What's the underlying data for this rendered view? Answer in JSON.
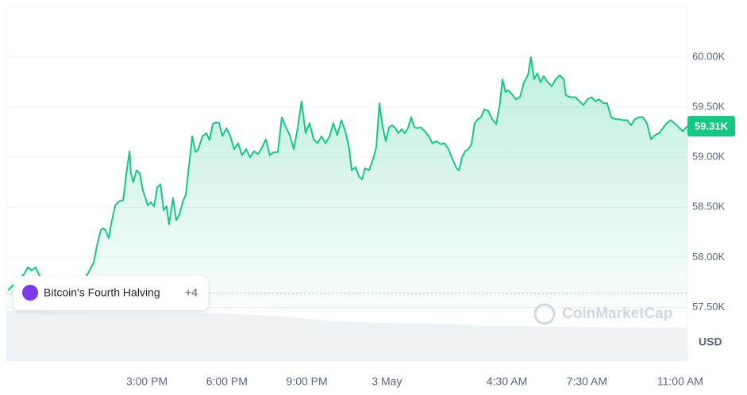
{
  "chart_data": {
    "type": "line",
    "color": "#16c784",
    "xlim": [
      9.73,
      35.27
    ],
    "xticks": [
      {
        "value": 15,
        "label": "3:00 PM"
      },
      {
        "value": 18,
        "label": "6:00 PM"
      },
      {
        "value": 21,
        "label": "9:00 PM"
      },
      {
        "value": 24,
        "label": "3 May"
      },
      {
        "value": 28.5,
        "label": "4:30 AM"
      },
      {
        "value": 31.5,
        "label": "7:30 AM"
      },
      {
        "value": 35,
        "label": "11:00 AM"
      }
    ],
    "ylim": [
      57440,
      60500
    ],
    "yticks": [
      {
        "value": 57500,
        "label": "57.50K"
      },
      {
        "value": 58000,
        "label": "58.00K"
      },
      {
        "value": 58500,
        "label": "58.50K"
      },
      {
        "value": 59000,
        "label": "59.00K"
      },
      {
        "value": 59500,
        "label": "59.50K"
      },
      {
        "value": 60000,
        "label": "60.00K"
      }
    ],
    "grid": true,
    "y_axis_label": "USD",
    "reference_value": 57640,
    "current": {
      "value": 59310,
      "label": "59.31K"
    },
    "annotation": {
      "label": "Bitcoin's Fourth Halving",
      "count": "+4"
    },
    "watermark": "CoinMarketCap",
    "x": [
      9.79,
      10.39,
      10.54,
      10.68,
      10.83,
      10.98,
      11.28,
      11.87,
      12.47,
      12.77,
      13.01,
      13.12,
      13.27,
      13.36,
      13.45,
      13.57,
      13.66,
      13.81,
      13.96,
      14.11,
      14.26,
      14.35,
      14.4,
      14.49,
      14.61,
      14.73,
      14.85,
      15.03,
      15.15,
      15.27,
      15.39,
      15.51,
      15.63,
      15.74,
      15.83,
      15.98,
      16.1,
      16.22,
      16.34,
      16.46,
      16.58,
      16.7,
      16.82,
      16.93,
      17.08,
      17.23,
      17.35,
      17.47,
      17.59,
      17.71,
      17.83,
      17.98,
      18.13,
      18.27,
      18.42,
      18.57,
      18.72,
      18.87,
      19.02,
      19.17,
      19.32,
      19.46,
      19.61,
      19.76,
      19.91,
      20.06,
      20.21,
      20.36,
      20.51,
      20.65,
      20.8,
      20.95,
      21.1,
      21.25,
      21.4,
      21.55,
      21.7,
      21.85,
      21.99,
      22.14,
      22.29,
      22.44,
      22.59,
      22.68,
      22.83,
      22.95,
      23.07,
      23.18,
      23.33,
      23.48,
      23.6,
      23.72,
      23.84,
      23.96,
      24.08,
      24.2,
      24.32,
      24.43,
      24.55,
      24.67,
      24.79,
      24.91,
      25.03,
      25.15,
      25.27,
      25.42,
      25.57,
      25.71,
      25.86,
      26.01,
      26.16,
      26.31,
      26.46,
      26.61,
      26.7,
      26.82,
      26.93,
      27.05,
      27.17,
      27.29,
      27.41,
      27.53,
      27.65,
      27.8,
      27.95,
      28.1,
      28.24,
      28.33,
      28.45,
      28.54,
      28.69,
      28.84,
      28.99,
      29.14,
      29.29,
      29.4,
      29.52,
      29.64,
      29.76,
      29.88,
      30.03,
      30.18,
      30.33,
      30.48,
      30.63,
      30.71,
      30.86,
      31.07,
      31.22,
      31.37,
      31.52,
      31.67,
      31.82,
      31.96,
      32.11,
      32.26,
      32.41,
      32.56,
      32.71,
      32.86,
      33.01,
      33.15,
      33.3,
      33.45,
      33.6,
      33.75,
      33.9,
      34.05,
      34.2,
      34.35,
      34.49,
      34.64,
      34.79,
      34.94,
      35.09,
      35.27
    ],
    "values": [
      57670,
      57830,
      57900,
      57870,
      57900,
      57810,
      57790,
      57750,
      57710,
      57830,
      57950,
      58110,
      58270,
      58290,
      58270,
      58190,
      58330,
      58520,
      58560,
      58570,
      58900,
      59060,
      58840,
      58750,
      58870,
      58840,
      58670,
      58520,
      58550,
      58510,
      58700,
      58730,
      58470,
      58510,
      58330,
      58590,
      58370,
      58430,
      58550,
      58630,
      58920,
      59210,
      59050,
      59080,
      59210,
      59240,
      59170,
      59330,
      59350,
      59340,
      59210,
      59290,
      59210,
      59080,
      59140,
      59020,
      59080,
      59000,
      59060,
      59030,
      59100,
      59180,
      59020,
      59050,
      59050,
      59400,
      59300,
      59220,
      59080,
      59290,
      59560,
      59240,
      59340,
      59180,
      59140,
      59210,
      59140,
      59210,
      59340,
      59220,
      59370,
      59260,
      59080,
      58870,
      58900,
      58810,
      58780,
      58890,
      58870,
      58980,
      59100,
      59540,
      59300,
      59160,
      59300,
      59320,
      59290,
      59240,
      59280,
      59240,
      59290,
      59400,
      59300,
      59290,
      59300,
      59260,
      59210,
      59140,
      59160,
      59130,
      59140,
      59080,
      58980,
      58890,
      58870,
      59000,
      59060,
      59080,
      59130,
      59340,
      59380,
      59400,
      59480,
      59460,
      59380,
      59330,
      59540,
      59780,
      59650,
      59670,
      59630,
      59580,
      59600,
      59750,
      59820,
      60000,
      59780,
      59840,
      59750,
      59810,
      59750,
      59710,
      59780,
      59820,
      59780,
      59620,
      59600,
      59600,
      59560,
      59520,
      59580,
      59600,
      59560,
      59580,
      59540,
      59540,
      59400,
      59380,
      59380,
      59370,
      59370,
      59320,
      59380,
      59400,
      59400,
      59340,
      59180,
      59220,
      59240,
      59290,
      59340,
      59370,
      59340,
      59300,
      59260,
      59310
    ]
  }
}
